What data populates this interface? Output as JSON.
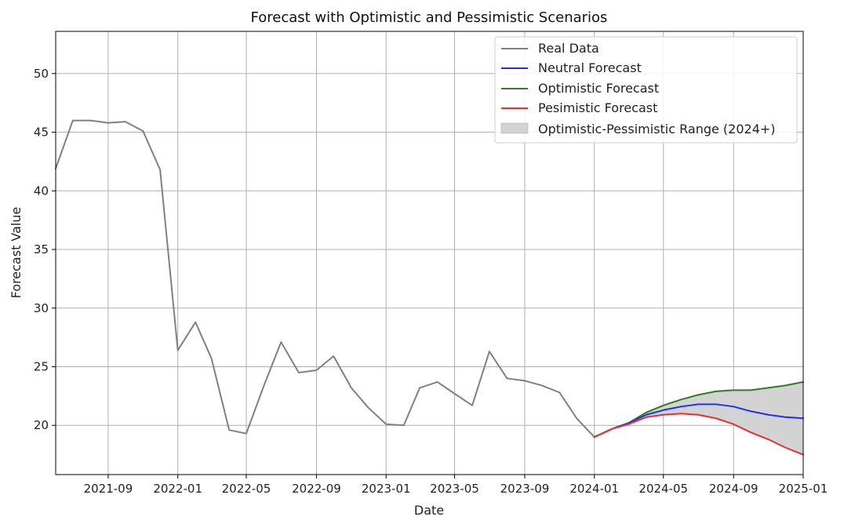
{
  "chart_data": {
    "type": "line",
    "title": "Forecast with Optimistic and Pessimistic Scenarios",
    "xlabel": "Date",
    "ylabel": "Forecast Value",
    "xlim": [
      "2021-06-01",
      "2025-01-01"
    ],
    "ylim": [
      15.8,
      53.6
    ],
    "x_ticks": [
      "2021-09",
      "2022-01",
      "2022-05",
      "2022-09",
      "2023-01",
      "2023-05",
      "2023-09",
      "2024-01",
      "2024-05",
      "2024-09",
      "2025-01"
    ],
    "y_ticks": [
      20,
      25,
      30,
      35,
      40,
      45,
      50
    ],
    "grid": true,
    "legend_position": "top-right",
    "colors": {
      "real": "#808080",
      "neutral": "#1f2ff0",
      "optimistic": "#2e7d22",
      "pessimistic": "#e8302a",
      "range_fill": "#d3d3d3",
      "range_edge": "#b0b0b0",
      "grid": "#b0b0b0",
      "axis": "#000000"
    },
    "series": [
      {
        "name": "Real Data",
        "key": "real",
        "x": [
          "2021-06-01",
          "2021-07-01",
          "2021-08-01",
          "2021-09-01",
          "2021-10-01",
          "2021-11-01",
          "2021-12-01",
          "2022-01-01",
          "2022-02-01",
          "2022-03-01",
          "2022-04-01",
          "2022-05-01",
          "2022-06-01",
          "2022-07-01",
          "2022-08-01",
          "2022-09-01",
          "2022-10-01",
          "2022-11-01",
          "2022-12-01",
          "2023-01-01",
          "2023-02-01",
          "2023-03-01",
          "2023-04-01",
          "2023-05-01",
          "2023-06-01",
          "2023-07-01",
          "2023-08-01",
          "2023-09-01",
          "2023-10-01",
          "2023-11-01",
          "2023-12-01",
          "2024-01-01"
        ],
        "values": [
          41.9,
          46.0,
          46.0,
          45.8,
          45.9,
          45.1,
          41.8,
          26.4,
          28.8,
          25.7,
          19.6,
          19.3,
          23.4,
          27.1,
          24.5,
          24.7,
          25.9,
          23.2,
          21.5,
          20.1,
          20.0,
          23.2,
          23.7,
          22.7,
          21.7,
          26.3,
          24.0,
          23.8,
          23.4,
          22.8,
          20.6,
          19.0
        ]
      },
      {
        "name": "Neutral Forecast",
        "key": "neutral",
        "x": [
          "2024-01-01",
          "2024-02-01",
          "2024-03-01",
          "2024-04-01",
          "2024-05-01",
          "2024-06-01",
          "2024-07-01",
          "2024-08-01",
          "2024-09-01",
          "2024-10-01",
          "2024-11-01",
          "2024-12-01",
          "2025-01-01"
        ],
        "values": [
          19.0,
          19.7,
          20.2,
          20.9,
          21.3,
          21.6,
          21.8,
          21.8,
          21.6,
          21.2,
          20.9,
          20.7,
          20.6
        ]
      },
      {
        "name": "Optimistic Forecast",
        "key": "optimistic",
        "x": [
          "2024-01-01",
          "2024-02-01",
          "2024-03-01",
          "2024-04-01",
          "2024-05-01",
          "2024-06-01",
          "2024-07-01",
          "2024-08-01",
          "2024-09-01",
          "2024-10-01",
          "2024-11-01",
          "2024-12-01",
          "2025-01-01"
        ],
        "values": [
          19.0,
          19.7,
          20.2,
          21.1,
          21.7,
          22.2,
          22.6,
          22.9,
          23.0,
          23.0,
          23.2,
          23.4,
          23.7
        ]
      },
      {
        "name": "Pesimistic Forecast",
        "key": "pessimistic",
        "x": [
          "2024-01-01",
          "2024-02-01",
          "2024-03-01",
          "2024-04-01",
          "2024-05-01",
          "2024-06-01",
          "2024-07-01",
          "2024-08-01",
          "2024-09-01",
          "2024-10-01",
          "2024-11-01",
          "2024-12-01",
          "2025-01-01"
        ],
        "values": [
          19.0,
          19.7,
          20.1,
          20.7,
          20.9,
          21.0,
          20.9,
          20.6,
          20.1,
          19.4,
          18.8,
          18.1,
          17.5
        ]
      }
    ],
    "range_label": "Optimistic-Pessimistic Range (2024+)"
  }
}
